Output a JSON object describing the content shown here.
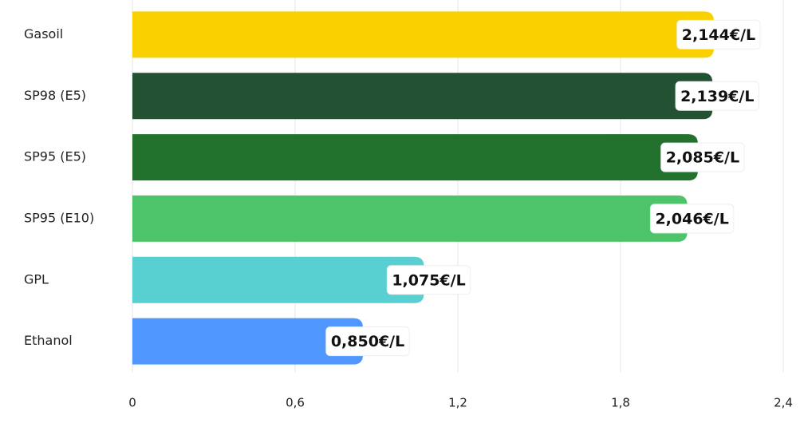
{
  "chart_data": {
    "type": "bar",
    "orientation": "horizontal",
    "categories": [
      "Gasoil",
      "SP98 (E5)",
      "SP95 (E5)",
      "SP95 (E10)",
      "GPL",
      "Ethanol"
    ],
    "values": [
      2.144,
      2.139,
      2.085,
      2.046,
      1.075,
      0.85
    ],
    "value_labels": [
      "2,144€/L",
      "2,139€/L",
      "2,085€/L",
      "2,046€/L",
      "1,075€/L",
      "0,850€/L"
    ],
    "colors": [
      "#f9d000",
      "#225232",
      "#22722e",
      "#4dc46a",
      "#58cfd0",
      "#4f97ff"
    ],
    "xlim": [
      0,
      2.4
    ],
    "xticks": [
      0,
      {
        "value": 0.6,
        "label": "0,6"
      },
      {
        "value": 1.2,
        "label": "1,2"
      },
      {
        "value": 1.8,
        "label": "1,8"
      },
      {
        "value": 2.4,
        "label": "2,4"
      }
    ],
    "grid": true
  }
}
